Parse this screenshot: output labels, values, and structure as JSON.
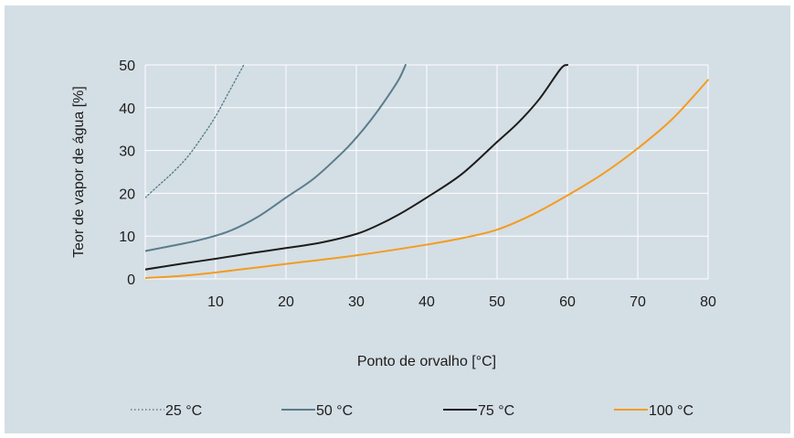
{
  "chart_data": {
    "type": "line",
    "xlabel": "Ponto de orvalho [°C]",
    "ylabel": "Teor de vapor de água [%]",
    "xlim": [
      0,
      80
    ],
    "ylim": [
      0,
      50
    ],
    "x_ticks": [
      "10",
      "20",
      "30",
      "40",
      "50",
      "60",
      "70",
      "80"
    ],
    "y_ticks": [
      "0",
      "10",
      "20",
      "30",
      "40",
      "50"
    ],
    "grid": true,
    "legend_position": "bottom",
    "series": [
      {
        "name": "25 °C",
        "color": "#5a7d8c",
        "style": "dotted",
        "x": [
          0,
          2,
          4,
          6,
          8,
          10,
          12,
          14
        ],
        "y": [
          19,
          22,
          25,
          28.5,
          33,
          38,
          44,
          50
        ]
      },
      {
        "name": "50 °C",
        "color": "#5a7d8c",
        "style": "solid",
        "x": [
          0,
          4,
          8,
          12,
          16,
          20,
          24,
          28,
          30,
          32,
          34,
          36,
          37
        ],
        "y": [
          6.5,
          7.8,
          9.2,
          11.2,
          14.5,
          19,
          23.5,
          29.5,
          33,
          37,
          41.5,
          46.5,
          50
        ]
      },
      {
        "name": "75 °C",
        "color": "#1d1d1b",
        "style": "solid",
        "x": [
          0,
          5,
          10,
          15,
          20,
          25,
          30,
          33,
          36,
          40,
          45,
          50,
          53,
          56,
          59,
          60
        ],
        "y": [
          2.2,
          3.5,
          4.7,
          6,
          7.2,
          8.5,
          10.5,
          12.5,
          15,
          19,
          24.5,
          32,
          36.5,
          42,
          49,
          50
        ]
      },
      {
        "name": "100 °C",
        "color": "#f39c1f",
        "style": "solid",
        "x": [
          0,
          5,
          10,
          20,
          30,
          40,
          45,
          50,
          55,
          60,
          65,
          70,
          75,
          80
        ],
        "y": [
          0.2,
          0.7,
          1.5,
          3.5,
          5.5,
          8,
          9.5,
          11.5,
          15,
          19.5,
          24.5,
          30.5,
          37.5,
          46.5
        ]
      }
    ]
  }
}
